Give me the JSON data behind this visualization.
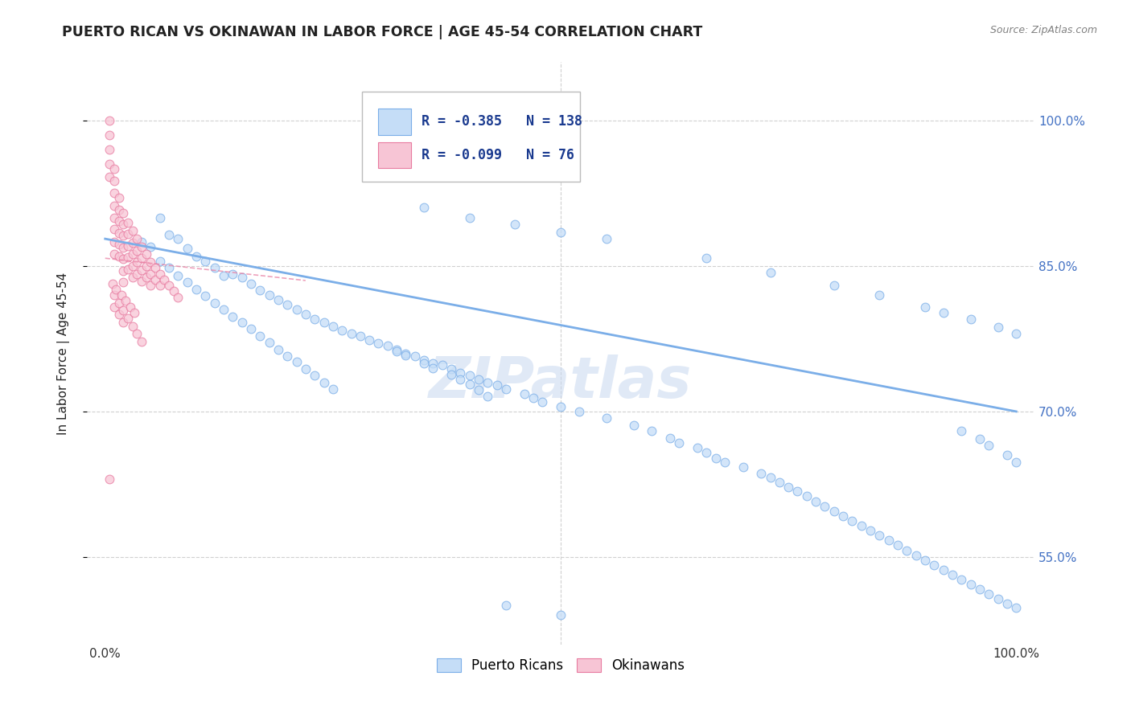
{
  "title": "PUERTO RICAN VS OKINAWAN IN LABOR FORCE | AGE 45-54 CORRELATION CHART",
  "source": "Source: ZipAtlas.com",
  "ylabel": "In Labor Force | Age 45-54",
  "yticks": [
    0.55,
    0.7,
    0.85,
    1.0
  ],
  "ytick_labels": [
    "55.0%",
    "70.0%",
    "85.0%",
    "100.0%"
  ],
  "xlim": [
    -0.02,
    1.02
  ],
  "ylim": [
    0.46,
    1.06
  ],
  "blue_R": -0.385,
  "blue_N": 138,
  "pink_R": -0.099,
  "pink_N": 76,
  "blue_color": "#c5ddf7",
  "blue_edge_color": "#7baee8",
  "pink_color": "#f7c5d5",
  "pink_edge_color": "#e87ba0",
  "watermark": "ZIPatlas",
  "legend_blue_label": "Puerto Ricans",
  "legend_pink_label": "Okinawans",
  "blue_scatter_x": [
    0.04,
    0.05,
    0.06,
    0.07,
    0.08,
    0.09,
    0.1,
    0.11,
    0.12,
    0.13,
    0.14,
    0.15,
    0.16,
    0.17,
    0.18,
    0.19,
    0.2,
    0.21,
    0.22,
    0.23,
    0.24,
    0.25,
    0.26,
    0.27,
    0.28,
    0.29,
    0.3,
    0.31,
    0.32,
    0.33,
    0.34,
    0.35,
    0.36,
    0.37,
    0.38,
    0.39,
    0.4,
    0.41,
    0.42,
    0.43,
    0.44,
    0.46,
    0.47,
    0.48,
    0.5,
    0.52,
    0.55,
    0.58,
    0.6,
    0.62,
    0.63,
    0.65,
    0.66,
    0.67,
    0.68,
    0.7,
    0.72,
    0.73,
    0.74,
    0.75,
    0.76,
    0.77,
    0.78,
    0.79,
    0.8,
    0.81,
    0.82,
    0.83,
    0.84,
    0.85,
    0.86,
    0.87,
    0.88,
    0.89,
    0.9,
    0.91,
    0.92,
    0.93,
    0.94,
    0.95,
    0.96,
    0.97,
    0.98,
    0.99,
    1.0,
    0.06,
    0.07,
    0.08,
    0.09,
    0.1,
    0.11,
    0.12,
    0.13,
    0.14,
    0.15,
    0.16,
    0.17,
    0.18,
    0.19,
    0.2,
    0.21,
    0.22,
    0.23,
    0.24,
    0.25,
    0.32,
    0.33,
    0.35,
    0.36,
    0.38,
    0.39,
    0.4,
    0.41,
    0.42,
    0.35,
    0.4,
    0.45,
    0.5,
    0.55,
    0.66,
    0.73,
    0.8,
    0.85,
    0.9,
    0.92,
    0.95,
    0.98,
    1.0,
    0.94,
    0.96,
    0.97,
    0.99,
    1.0,
    0.44,
    0.5
  ],
  "blue_scatter_y": [
    0.875,
    0.87,
    0.9,
    0.882,
    0.878,
    0.868,
    0.86,
    0.855,
    0.848,
    0.84,
    0.842,
    0.838,
    0.832,
    0.825,
    0.82,
    0.815,
    0.81,
    0.805,
    0.8,
    0.795,
    0.792,
    0.788,
    0.784,
    0.78,
    0.778,
    0.774,
    0.77,
    0.768,
    0.764,
    0.76,
    0.757,
    0.753,
    0.75,
    0.748,
    0.744,
    0.74,
    0.737,
    0.733,
    0.73,
    0.727,
    0.723,
    0.718,
    0.714,
    0.71,
    0.705,
    0.7,
    0.693,
    0.686,
    0.68,
    0.673,
    0.668,
    0.663,
    0.658,
    0.652,
    0.648,
    0.643,
    0.636,
    0.632,
    0.627,
    0.622,
    0.618,
    0.613,
    0.607,
    0.602,
    0.597,
    0.592,
    0.587,
    0.582,
    0.577,
    0.572,
    0.567,
    0.562,
    0.557,
    0.552,
    0.547,
    0.542,
    0.537,
    0.532,
    0.527,
    0.522,
    0.517,
    0.512,
    0.507,
    0.502,
    0.498,
    0.855,
    0.848,
    0.84,
    0.833,
    0.826,
    0.819,
    0.812,
    0.805,
    0.798,
    0.792,
    0.785,
    0.778,
    0.771,
    0.764,
    0.757,
    0.751,
    0.744,
    0.737,
    0.73,
    0.723,
    0.762,
    0.758,
    0.75,
    0.745,
    0.738,
    0.733,
    0.728,
    0.722,
    0.716,
    0.91,
    0.9,
    0.893,
    0.885,
    0.878,
    0.858,
    0.843,
    0.83,
    0.82,
    0.808,
    0.802,
    0.795,
    0.787,
    0.78,
    0.68,
    0.672,
    0.665,
    0.655,
    0.648,
    0.5,
    0.49
  ],
  "pink_scatter_x": [
    0.005,
    0.005,
    0.005,
    0.005,
    0.005,
    0.01,
    0.01,
    0.01,
    0.01,
    0.01,
    0.01,
    0.01,
    0.01,
    0.015,
    0.015,
    0.015,
    0.015,
    0.015,
    0.015,
    0.02,
    0.02,
    0.02,
    0.02,
    0.02,
    0.02,
    0.02,
    0.025,
    0.025,
    0.025,
    0.025,
    0.025,
    0.03,
    0.03,
    0.03,
    0.03,
    0.03,
    0.035,
    0.035,
    0.035,
    0.035,
    0.04,
    0.04,
    0.04,
    0.04,
    0.045,
    0.045,
    0.045,
    0.05,
    0.05,
    0.05,
    0.055,
    0.055,
    0.06,
    0.06,
    0.065,
    0.07,
    0.075,
    0.08,
    0.005,
    0.01,
    0.01,
    0.015,
    0.015,
    0.02,
    0.02,
    0.025,
    0.03,
    0.035,
    0.04,
    0.008,
    0.012,
    0.018,
    0.022,
    0.028,
    0.032
  ],
  "pink_scatter_y": [
    1.0,
    0.985,
    0.97,
    0.955,
    0.942,
    0.95,
    0.938,
    0.925,
    0.912,
    0.9,
    0.888,
    0.875,
    0.862,
    0.92,
    0.908,
    0.896,
    0.884,
    0.872,
    0.86,
    0.905,
    0.893,
    0.881,
    0.869,
    0.857,
    0.845,
    0.833,
    0.895,
    0.883,
    0.871,
    0.859,
    0.847,
    0.886,
    0.874,
    0.862,
    0.85,
    0.838,
    0.878,
    0.866,
    0.854,
    0.842,
    0.87,
    0.858,
    0.846,
    0.834,
    0.862,
    0.85,
    0.838,
    0.854,
    0.842,
    0.83,
    0.848,
    0.836,
    0.842,
    0.83,
    0.836,
    0.83,
    0.824,
    0.818,
    0.63,
    0.82,
    0.808,
    0.812,
    0.8,
    0.804,
    0.792,
    0.796,
    0.788,
    0.78,
    0.772,
    0.832,
    0.826,
    0.82,
    0.814,
    0.808,
    0.802
  ],
  "blue_trendline_x": [
    0.0,
    1.0
  ],
  "blue_trendline_y": [
    0.878,
    0.7
  ],
  "pink_trendline_x": [
    0.0,
    0.22
  ],
  "pink_trendline_y": [
    0.858,
    0.835
  ],
  "grid_color": "#d0d0d0",
  "grid_linestyle": "--",
  "background_color": "#ffffff",
  "title_color": "#222222",
  "title_fontsize": 12.5,
  "source_fontsize": 9,
  "axis_label_fontsize": 11,
  "tick_fontsize": 11,
  "ytick_color": "#4472c4",
  "xtick_color": "#333333",
  "legend_fontsize": 12,
  "marker_size": 60,
  "marker_alpha": 0.75,
  "marker_linewidth": 0.8
}
